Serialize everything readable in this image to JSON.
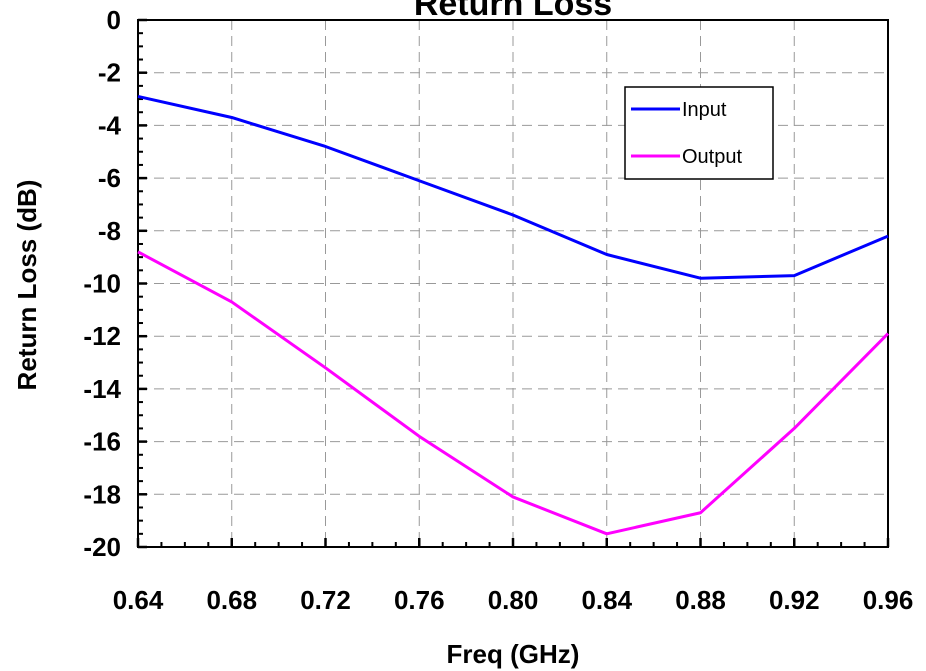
{
  "chart_data": {
    "type": "line",
    "title": "Return Loss",
    "xlabel": "Freq (GHz)",
    "ylabel": "Return Loss (dB)",
    "xlim": [
      0.64,
      0.96
    ],
    "ylim": [
      -20,
      0
    ],
    "x_ticks": [
      "0.64",
      "0.68",
      "0.72",
      "0.76",
      "0.80",
      "0.84",
      "0.88",
      "0.92",
      "0.96"
    ],
    "y_ticks": [
      "0",
      "-2",
      "-4",
      "-6",
      "-8",
      "-10",
      "-12",
      "-14",
      "-16",
      "-18",
      "-20"
    ],
    "grid": true,
    "grid_style": "dashed",
    "legend_position": "top-right",
    "x": [
      0.64,
      0.68,
      0.72,
      0.76,
      0.8,
      0.84,
      0.88,
      0.92,
      0.96
    ],
    "series": [
      {
        "name": "Input",
        "color": "#0000ff",
        "values": [
          -2.9,
          -3.7,
          -4.8,
          -6.1,
          -7.4,
          -8.9,
          -9.8,
          -9.7,
          -8.2
        ]
      },
      {
        "name": "Output",
        "color": "#ff00ff",
        "values": [
          -8.8,
          -10.7,
          -13.2,
          -15.8,
          -18.1,
          -19.5,
          -18.7,
          -15.5,
          -11.9
        ]
      }
    ]
  }
}
